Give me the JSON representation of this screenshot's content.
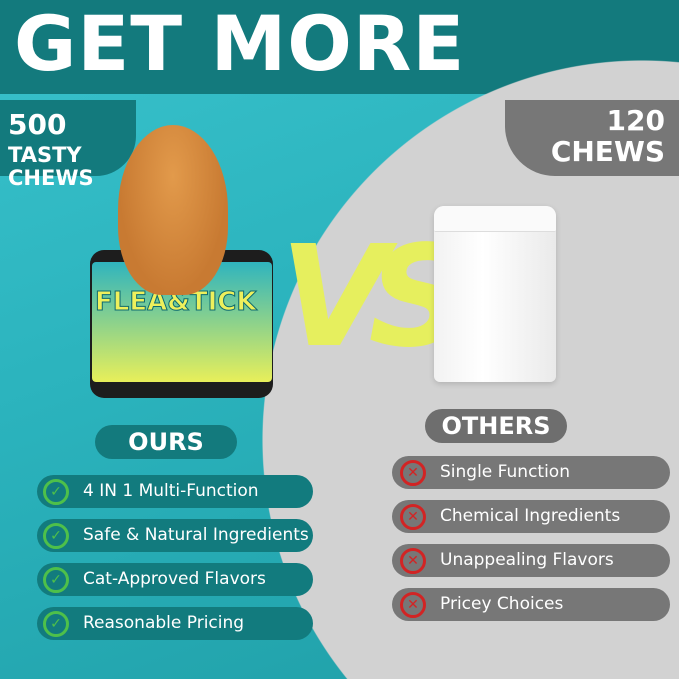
{
  "header": {
    "title": "GET MORE"
  },
  "ours": {
    "badge": {
      "count": "500",
      "line1_rest": "TASTY",
      "line2": "CHEWS"
    },
    "product_label": "FLEA&TICK",
    "pill": "OURS",
    "features": [
      "4 IN 1 Multi-Function",
      "Safe & Natural Ingredients",
      "Cat-Approved Flavors",
      "Reasonable Pricing"
    ],
    "icon": "check-circle-icon",
    "color": "#137a7d"
  },
  "vs": "VS",
  "others": {
    "badge": {
      "line1": "120",
      "line2": "CHEWS"
    },
    "pill": "OTHERS",
    "features": [
      "Single Function",
      "Chemical Ingredients",
      "Unappealing Flavors",
      "Pricey Choices"
    ],
    "icon": "x-circle-icon",
    "color": "#777777"
  }
}
